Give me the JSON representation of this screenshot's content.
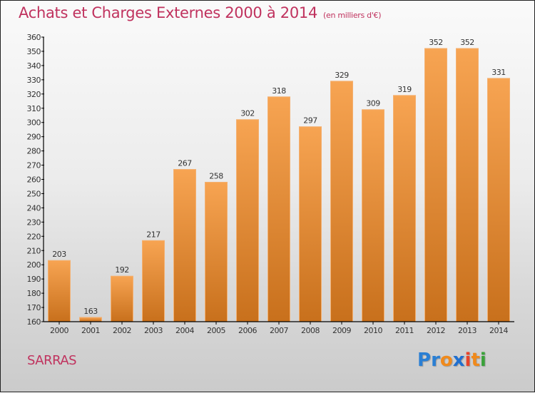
{
  "header": {
    "title": "Achats et Charges Externes 2000 à 2014",
    "subtitle": "(en milliers d'€)"
  },
  "footer": {
    "commune": "SARRAS",
    "logo_letters": [
      {
        "ch": "P",
        "color": "#2a7fd4"
      },
      {
        "ch": "r",
        "color": "#2a7fd4"
      },
      {
        "ch": "o",
        "color": "#f08a1c"
      },
      {
        "ch": "x",
        "color": "#1f6fd0"
      },
      {
        "ch": "i",
        "color": "#e8432a"
      },
      {
        "ch": "t",
        "color": "#f08a1c"
      },
      {
        "ch": "i",
        "color": "#3aa23a"
      }
    ]
  },
  "colors": {
    "bar_top": "#f7a452",
    "bar_bottom": "#c8701c",
    "bar_edge": "#f4b070",
    "title": "#c0325e",
    "axis": "#000000",
    "label": "#333333"
  },
  "chart_data": {
    "type": "bar",
    "title": "Achats et Charges Externes 2000 à 2014",
    "subtitle": "(en milliers d'€)",
    "xlabel": "",
    "ylabel": "",
    "categories": [
      "2000",
      "2001",
      "2002",
      "2003",
      "2004",
      "2005",
      "2006",
      "2007",
      "2008",
      "2009",
      "2010",
      "2011",
      "2012",
      "2013",
      "2014"
    ],
    "values": [
      203,
      163,
      192,
      217,
      267,
      258,
      302,
      318,
      297,
      329,
      309,
      319,
      352,
      352,
      331
    ],
    "ylim": [
      160,
      360
    ],
    "yticks": [
      160,
      170,
      180,
      190,
      200,
      210,
      220,
      230,
      240,
      250,
      260,
      270,
      280,
      290,
      300,
      310,
      320,
      330,
      340,
      350,
      360
    ],
    "grid": false,
    "legend": "none",
    "data_labels": true
  }
}
